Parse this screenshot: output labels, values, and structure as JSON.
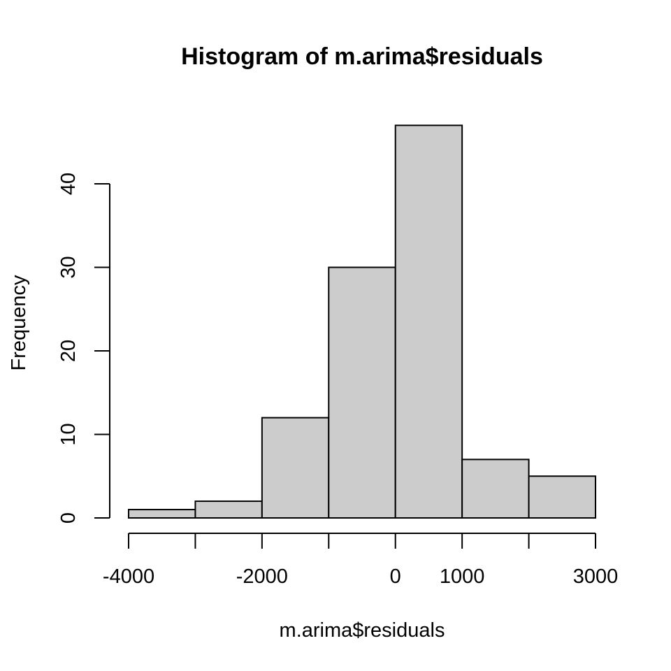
{
  "chart_data": {
    "type": "bar",
    "title": "Histogram of m.arima$residuals",
    "xlabel": "m.arima$residuals",
    "ylabel": "Frequency",
    "bin_edges": [
      -4000,
      -3000,
      -2000,
      -1000,
      0,
      1000,
      2000,
      3000
    ],
    "values": [
      1,
      2,
      12,
      30,
      47,
      7,
      5
    ],
    "x_ticks": [
      -4000,
      -2000,
      0,
      1000,
      3000
    ],
    "y_ticks": [
      0,
      10,
      20,
      30,
      40
    ],
    "xlim": [
      -4000,
      3000
    ],
    "ylim": [
      0,
      47
    ],
    "grid": false,
    "bar_color": "#cccccc",
    "edge_color": "#000000"
  }
}
